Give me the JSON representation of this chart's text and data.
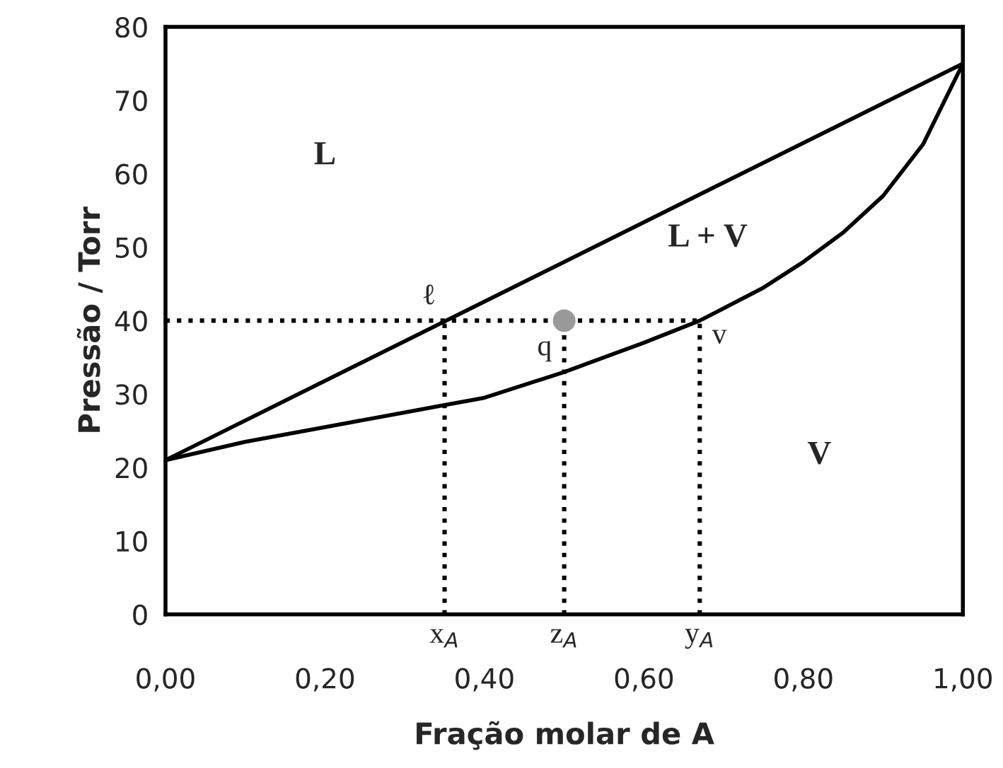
{
  "chart_data": {
    "type": "line",
    "xlabel": "Fração molar de A",
    "ylabel": "Pressão / Torr",
    "xlim": [
      0,
      1
    ],
    "ylim": [
      0,
      80
    ],
    "xticks": [
      {
        "value": 0,
        "label": "0,00"
      },
      {
        "value": 0.2,
        "label": "0,20"
      },
      {
        "value": 0.4,
        "label": "0,40"
      },
      {
        "value": 0.6,
        "label": "0,60"
      },
      {
        "value": 0.8,
        "label": "0,80"
      },
      {
        "value": 1,
        "label": "1,00"
      }
    ],
    "yticks": [
      0,
      10,
      20,
      30,
      40,
      50,
      60,
      70,
      80
    ],
    "grid": false,
    "legend": false,
    "marker": "none",
    "series": [
      {
        "color": "#000000",
        "x": [
          0,
          1
        ],
        "values": [
          21,
          75
        ],
        "line_style": "solid"
      },
      {
        "color": "#000000",
        "x": [
          0,
          0.1,
          0.2,
          0.3,
          0.35,
          0.4,
          0.5,
          0.6,
          0.67,
          0.75,
          0.8,
          0.85,
          0.9,
          0.95,
          1.0
        ],
        "values": [
          21,
          23.5,
          25.5,
          27.5,
          28.5,
          29.5,
          33,
          37,
          40,
          44.5,
          48,
          52,
          57,
          64,
          75
        ],
        "line_style": "solid"
      },
      {
        "color": "#000000",
        "x": [
          0,
          0.67
        ],
        "values": [
          40,
          40
        ],
        "line_style": "dotted"
      },
      {
        "color": "#000000",
        "x": [
          0.35,
          0.35
        ],
        "values": [
          0,
          40
        ],
        "line_style": "dotted"
      },
      {
        "color": "#000000",
        "x": [
          0.5,
          0.5
        ],
        "values": [
          0,
          40
        ],
        "line_style": "dotted"
      },
      {
        "color": "#000000",
        "x": [
          0.67,
          0.67
        ],
        "values": [
          0,
          40
        ],
        "line_style": "dotted"
      },
      {
        "type": "scatter",
        "color": "#999999",
        "x": [
          0.5
        ],
        "values": [
          40
        ],
        "marker": "circle"
      }
    ],
    "annotations": [
      "L",
      "L + V",
      "V",
      {
        "text": "ℓ",
        "x": 0.35,
        "y": 40
      },
      {
        "text": "q",
        "x": 0.5,
        "y": 40
      },
      {
        "text": "v",
        "x": 0.67,
        "y": 40
      },
      {
        "text": "x$_{A}$",
        "x": 0.35,
        "y": 0
      },
      {
        "text": "z$_{A}$",
        "x": 0.5,
        "y": 0
      },
      {
        "text": "y$_{A}$",
        "x": 0.67,
        "y": 0
      }
    ]
  }
}
